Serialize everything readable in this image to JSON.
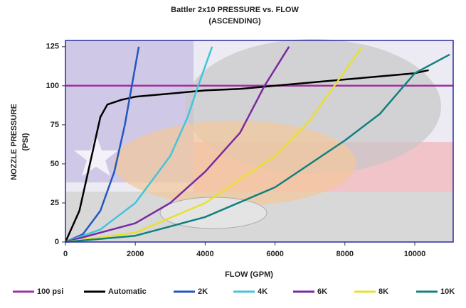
{
  "chart_data": {
    "type": "line",
    "title": "Battler 2x10 PRESSURE vs. FLOW",
    "subtitle": "(ASCENDING)",
    "xlabel": "FLOW (GPM)",
    "ylabel": [
      "NOZZLE PRESSURE",
      "(PSI)"
    ],
    "xlim": [
      0,
      11100
    ],
    "ylim": [
      0,
      129
    ],
    "xticks": [
      0,
      2000,
      4000,
      6000,
      8000,
      10000
    ],
    "yticks": [
      0,
      25,
      50,
      75,
      100,
      125
    ],
    "series": [
      {
        "name": "100 psi",
        "color": "#a030a0",
        "x": [
          0,
          11100
        ],
        "values": [
          100,
          100
        ]
      },
      {
        "name": "Automatic",
        "color": "#000000",
        "x": [
          0,
          400,
          800,
          1000,
          1200,
          1600,
          2000,
          3000,
          4000,
          5000,
          6000,
          7000,
          8000,
          9000,
          10000,
          10400
        ],
        "values": [
          0,
          20,
          60,
          80,
          88,
          91,
          93,
          95,
          97,
          98,
          100,
          102,
          104,
          106,
          108,
          110
        ]
      },
      {
        "name": "2K",
        "color": "#2456c0",
        "x": [
          0,
          500,
          1000,
          1400,
          1700,
          1900,
          2100
        ],
        "values": [
          0,
          5,
          20,
          45,
          75,
          100,
          125
        ]
      },
      {
        "name": "4K",
        "color": "#44c4dc",
        "x": [
          0,
          1000,
          2000,
          3000,
          3500,
          3800,
          4200
        ],
        "values": [
          0,
          8,
          25,
          55,
          80,
          100,
          125
        ]
      },
      {
        "name": "6K",
        "color": "#7a2aa0",
        "x": [
          0,
          2000,
          3000,
          4000,
          5000,
          5700,
          6400
        ],
        "values": [
          0,
          12,
          25,
          45,
          70,
          100,
          125
        ]
      },
      {
        "name": "8K",
        "color": "#e8e030",
        "x": [
          0,
          2000,
          4000,
          6000,
          7000,
          7700,
          8500
        ],
        "values": [
          0,
          6,
          25,
          55,
          78,
          100,
          125
        ]
      },
      {
        "name": "10K",
        "color": "#128080",
        "x": [
          0,
          2000,
          4000,
          6000,
          8000,
          9000,
          10000,
          11000
        ],
        "values": [
          0,
          4,
          16,
          35,
          65,
          82,
          108,
          120
        ]
      }
    ]
  }
}
